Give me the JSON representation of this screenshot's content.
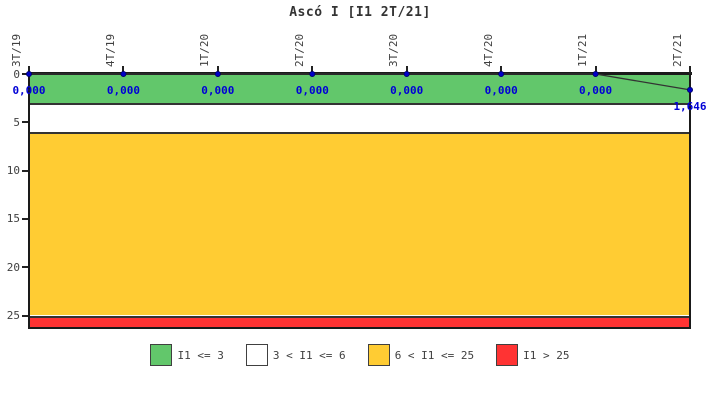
{
  "chart": {
    "title": "Ascó I [I1 2T/21]",
    "chart_data": {
      "type": "line",
      "title": "Ascó I [I1 2T/21]",
      "xlabel": "",
      "ylabel": "",
      "categories": [
        "3T/19",
        "4T/19",
        "1T/20",
        "2T/20",
        "3T/20",
        "4T/20",
        "1T/21",
        "2T/21"
      ],
      "series": [
        {
          "name": "I1",
          "values": [
            0,
            0,
            0,
            0,
            0,
            0,
            0,
            1.646
          ]
        }
      ],
      "point_labels": [
        "0,000",
        "0,000",
        "0,000",
        "0,000",
        "0,000",
        "0,000",
        "0,000",
        "1,646"
      ],
      "y_ticks": [
        0,
        5,
        10,
        15,
        20,
        25
      ],
      "ylim": [
        0,
        26.2
      ],
      "y_inverted": true,
      "x_axis_position": "top",
      "grid": false,
      "legend_position": "bottom",
      "bands": [
        {
          "label": "I1 <= 3",
          "from": 0,
          "to": 3,
          "color": "#62C76B"
        },
        {
          "label": "3 < I1 <= 6",
          "from": 3,
          "to": 6,
          "color": "#FFFFFF"
        },
        {
          "label": "6 < I1 <= 25",
          "from": 6,
          "to": 25,
          "color": "#FFCC33"
        },
        {
          "label": "I1 > 25",
          "from": 25,
          "to": 26.2,
          "color": "#FF3333"
        }
      ],
      "line_color": "#333333",
      "marker_color": "#0000C8",
      "label_color": "#0000D6",
      "axis_color": "#1a1a1a",
      "text_color": "#404040"
    }
  }
}
